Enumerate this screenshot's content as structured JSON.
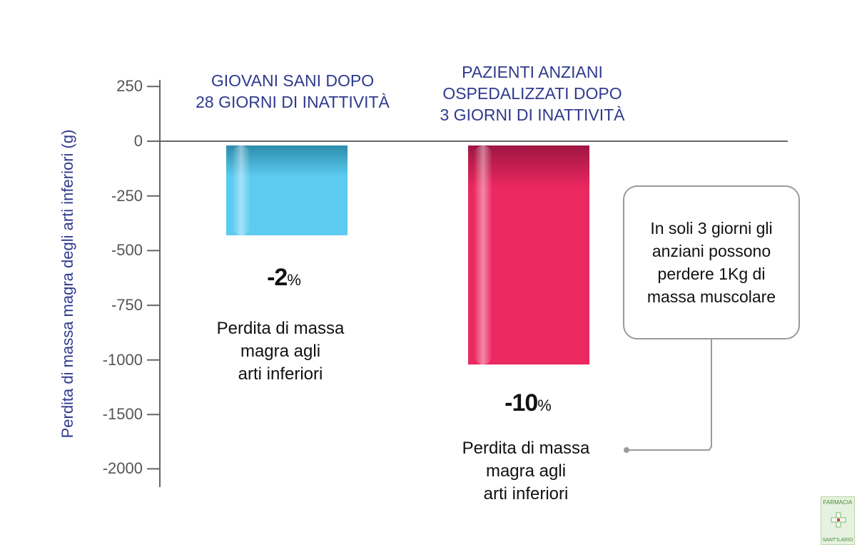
{
  "chart_data": {
    "type": "bar",
    "ylabel": "Perdita di massa magra degli arti inferiori (g)",
    "y_ticks": [
      250,
      0,
      -250,
      -500,
      -750,
      -1000,
      -1500,
      -2000
    ],
    "y_tick_labels": [
      "250",
      "0",
      "-250",
      "-500",
      "-750",
      "-1000",
      "-1500",
      "-2000"
    ],
    "categories": [
      "GIOVANI SANI DOPO\n28 GIORNI DI INATTIVITÀ",
      "PAZIENTI ANZIANI\nOSPEDALIZZATI DOPO\n3 GIORNI DI INATTIVITÀ"
    ],
    "values": [
      -430,
      -1040
    ],
    "percent_labels": [
      "-2",
      "-10"
    ],
    "percent_symbol": "%",
    "descriptions": [
      "Perdita di massa\nmagra agli\narti inferiori",
      "Perdita di massa\nmagra agli\narti inferiori"
    ],
    "colors": [
      "#5ccbf0",
      "#ec2860"
    ],
    "shade_colors": [
      "#2a8aa8",
      "#9a1440"
    ],
    "grid": false
  },
  "callout": {
    "text": "In soli 3 giorni gli\nanziani possono\nperdere 1Kg di\nmassa muscolare"
  },
  "logo": {
    "top_text": "FARMACIA",
    "bottom_text": "SANT'ILARIO",
    "icon": "pharmacy-cross-icon"
  }
}
